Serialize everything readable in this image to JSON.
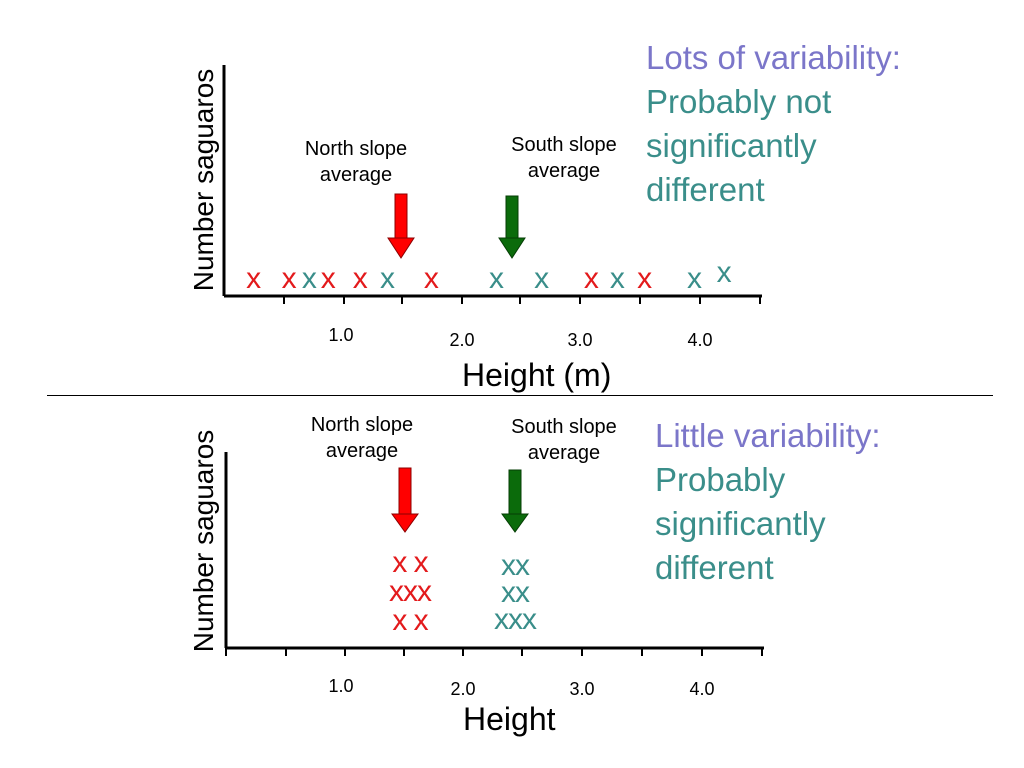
{
  "colors": {
    "north": "#e31a1c",
    "south": "#3a8e8a",
    "north_arrow": "#ff0000",
    "south_arrow": "#0b6b0b",
    "heading": "#7b76c9",
    "note_text": "#3a8e8a"
  },
  "top_panel": {
    "ylabel": "Number saguaros",
    "xlabel": "Height (m)",
    "ticks": [
      "1.0",
      "2.0",
      "3.0",
      "4.0"
    ],
    "north_label": [
      "North slope",
      "average"
    ],
    "south_label": [
      "South slope",
      "average"
    ],
    "note": {
      "line1": "Lots of variability:",
      "rest": [
        "Probably not",
        "significantly",
        "different"
      ]
    },
    "marks": [
      {
        "text": "x",
        "group": "north",
        "height": 0.25
      },
      {
        "text": "x",
        "group": "north",
        "height": 0.55
      },
      {
        "text": "x",
        "group": "south",
        "height": 0.72
      },
      {
        "text": "x",
        "group": "north",
        "height": 0.88
      },
      {
        "text": "x",
        "group": "north",
        "height": 1.15
      },
      {
        "text": "x",
        "group": "south",
        "height": 1.38
      },
      {
        "text": "x",
        "group": "north",
        "height": 1.75
      },
      {
        "text": "x",
        "group": "south",
        "height": 2.3
      },
      {
        "text": "x",
        "group": "south",
        "height": 2.68
      },
      {
        "text": "x",
        "group": "north",
        "height": 3.1
      },
      {
        "text": "x",
        "group": "south",
        "height": 3.32
      },
      {
        "text": "x",
        "group": "north",
        "height": 3.55
      },
      {
        "text": "x",
        "group": "south",
        "height": 3.97
      },
      {
        "text": "x",
        "group": "south",
        "height": 4.22
      }
    ]
  },
  "bottom_panel": {
    "ylabel": "Number saguaros",
    "xlabel": "Height",
    "ticks": [
      "1.0",
      "2.0",
      "3.0",
      "4.0"
    ],
    "north_label": [
      "North slope",
      "average"
    ],
    "south_label": [
      "South slope",
      "average"
    ],
    "note": {
      "line1": "Little variability:",
      "rest": [
        "Probably",
        "significantly",
        "different"
      ]
    },
    "north_rows": [
      "x x",
      "xxx",
      "x x"
    ],
    "south_rows": [
      "xx",
      "xx",
      "xxx"
    ]
  }
}
